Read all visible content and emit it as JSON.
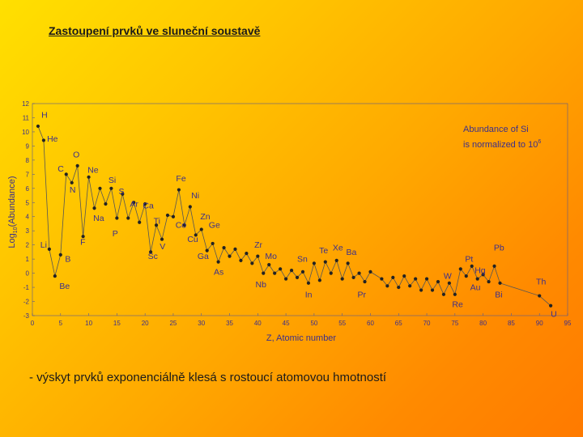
{
  "slide": {
    "title": "Zastoupení prvků ve sluneční soustavě",
    "bullet": "- výskyt prvků exponenciálně klesá s rostoucí atomovou hmotností"
  },
  "colors": {
    "ink": "#3b2f8a",
    "line": "#555555",
    "marker": "#222222"
  },
  "chart_data": {
    "type": "line",
    "title": "",
    "xlabel": "Z, Atomic number",
    "ylabel_prefix": "Log",
    "ylabel_sub": "10",
    "ylabel_suffix": "(Abundance)",
    "xlim": [
      0,
      95
    ],
    "ylim": [
      -3,
      12
    ],
    "x_ticks": [
      0,
      5,
      10,
      15,
      20,
      25,
      30,
      35,
      40,
      45,
      50,
      55,
      60,
      65,
      70,
      75,
      80,
      85,
      90,
      95
    ],
    "y_ticks": [
      -3,
      -2,
      -1,
      0,
      1,
      2,
      3,
      4,
      5,
      6,
      7,
      8,
      9,
      10,
      11,
      12
    ],
    "note_line1": "Abundance of Si",
    "note_line2_prefix": "is normalized to 10",
    "note_exp": "6",
    "points": [
      [
        1,
        10.4
      ],
      [
        2,
        9.4
      ],
      [
        3,
        1.7
      ],
      [
        4,
        -0.2
      ],
      [
        5,
        1.3
      ],
      [
        6,
        7.0
      ],
      [
        7,
        6.4
      ],
      [
        8,
        7.6
      ],
      [
        9,
        2.6
      ],
      [
        10,
        6.8
      ],
      [
        11,
        4.6
      ],
      [
        12,
        6.0
      ],
      [
        13,
        4.9
      ],
      [
        14,
        6.0
      ],
      [
        15,
        3.9
      ],
      [
        16,
        5.6
      ],
      [
        17,
        3.9
      ],
      [
        18,
        5.0
      ],
      [
        19,
        3.6
      ],
      [
        20,
        4.9
      ],
      [
        21,
        1.5
      ],
      [
        22,
        3.4
      ],
      [
        23,
        2.4
      ],
      [
        24,
        4.1
      ],
      [
        25,
        4.0
      ],
      [
        26,
        5.9
      ],
      [
        27,
        3.4
      ],
      [
        28,
        4.7
      ],
      [
        29,
        2.7
      ],
      [
        30,
        3.1
      ],
      [
        31,
        1.6
      ],
      [
        32,
        2.1
      ],
      [
        33,
        0.8
      ],
      [
        34,
        1.8
      ],
      [
        35,
        1.2
      ],
      [
        36,
        1.7
      ],
      [
        37,
        0.9
      ],
      [
        38,
        1.4
      ],
      [
        39,
        0.7
      ],
      [
        40,
        1.2
      ],
      [
        41,
        0.0
      ],
      [
        42,
        0.6
      ],
      [
        43,
        0.0
      ],
      [
        44,
        0.3
      ],
      [
        45,
        -0.4
      ],
      [
        46,
        0.2
      ],
      [
        47,
        -0.3
      ],
      [
        48,
        0.1
      ],
      [
        49,
        -0.7
      ],
      [
        50,
        0.7
      ],
      [
        51,
        -0.5
      ],
      [
        52,
        0.8
      ],
      [
        53,
        0.0
      ],
      [
        54,
        0.9
      ],
      [
        55,
        -0.4
      ],
      [
        56,
        0.7
      ],
      [
        57,
        -0.3
      ],
      [
        58,
        0.0
      ],
      [
        59,
        -0.6
      ],
      [
        60,
        0.1
      ],
      [
        62,
        -0.4
      ],
      [
        63,
        -0.9
      ],
      [
        64,
        -0.3
      ],
      [
        65,
        -1.0
      ],
      [
        66,
        -0.2
      ],
      [
        67,
        -0.9
      ],
      [
        68,
        -0.4
      ],
      [
        69,
        -1.2
      ],
      [
        70,
        -0.4
      ],
      [
        71,
        -1.2
      ],
      [
        72,
        -0.6
      ],
      [
        73,
        -1.5
      ],
      [
        74,
        -0.7
      ],
      [
        75,
        -1.5
      ],
      [
        76,
        0.3
      ],
      [
        77,
        -0.2
      ],
      [
        78,
        0.5
      ],
      [
        79,
        -0.4
      ],
      [
        80,
        -0.1
      ],
      [
        81,
        -0.6
      ],
      [
        82,
        0.5
      ],
      [
        83,
        -0.7
      ],
      [
        90,
        -1.6
      ],
      [
        92,
        -2.3
      ]
    ],
    "labels": [
      {
        "text": "H",
        "x": 1.6,
        "y": 11.0
      },
      {
        "text": "He",
        "x": 2.6,
        "y": 9.3
      },
      {
        "text": "Li",
        "x": 1.4,
        "y": 1.8
      },
      {
        "text": "Be",
        "x": 4.8,
        "y": -1.1
      },
      {
        "text": "B",
        "x": 5.8,
        "y": 0.8
      },
      {
        "text": "C",
        "x": 4.5,
        "y": 7.2
      },
      {
        "text": "N",
        "x": 6.6,
        "y": 5.7
      },
      {
        "text": "O",
        "x": 7.2,
        "y": 8.2
      },
      {
        "text": "F",
        "x": 8.5,
        "y": 2.0
      },
      {
        "text": "Ne",
        "x": 9.8,
        "y": 7.1
      },
      {
        "text": "Na",
        "x": 10.8,
        "y": 3.7
      },
      {
        "text": "Si",
        "x": 13.5,
        "y": 6.4
      },
      {
        "text": "S",
        "x": 15.3,
        "y": 5.6
      },
      {
        "text": "P",
        "x": 14.2,
        "y": 2.6
      },
      {
        "text": "Ar",
        "x": 17.3,
        "y": 4.7
      },
      {
        "text": "Ca",
        "x": 19.6,
        "y": 4.6
      },
      {
        "text": "Ti",
        "x": 21.5,
        "y": 3.5
      },
      {
        "text": "Sc",
        "x": 20.5,
        "y": 1.0
      },
      {
        "text": "V",
        "x": 22.6,
        "y": 1.7
      },
      {
        "text": "Fe",
        "x": 25.5,
        "y": 6.5
      },
      {
        "text": "Ni",
        "x": 28.2,
        "y": 5.3
      },
      {
        "text": "Zn",
        "x": 29.8,
        "y": 3.8
      },
      {
        "text": "Co",
        "x": 25.4,
        "y": 3.2
      },
      {
        "text": "Ge",
        "x": 31.3,
        "y": 3.2
      },
      {
        "text": "Cu",
        "x": 27.5,
        "y": 2.2
      },
      {
        "text": "Ga",
        "x": 29.3,
        "y": 1.0
      },
      {
        "text": "As",
        "x": 32.2,
        "y": -0.1
      },
      {
        "text": "Zr",
        "x": 39.4,
        "y": 1.8
      },
      {
        "text": "Mo",
        "x": 41.3,
        "y": 1.0
      },
      {
        "text": "Nb",
        "x": 39.6,
        "y": -1.0
      },
      {
        "text": "Sn",
        "x": 47.0,
        "y": 0.8
      },
      {
        "text": "Te",
        "x": 50.9,
        "y": 1.4
      },
      {
        "text": "Xe",
        "x": 53.3,
        "y": 1.6
      },
      {
        "text": "Ba",
        "x": 55.7,
        "y": 1.3
      },
      {
        "text": "In",
        "x": 48.4,
        "y": -1.7
      },
      {
        "text": "Pr",
        "x": 57.7,
        "y": -1.7
      },
      {
        "text": "W",
        "x": 73.0,
        "y": -0.4
      },
      {
        "text": "Re",
        "x": 74.5,
        "y": -2.4
      },
      {
        "text": "Pt",
        "x": 76.8,
        "y": 0.8
      },
      {
        "text": "Hg",
        "x": 78.5,
        "y": 0.0
      },
      {
        "text": "Au",
        "x": 77.7,
        "y": -1.2
      },
      {
        "text": "Pb",
        "x": 81.9,
        "y": 1.6
      },
      {
        "text": "Bi",
        "x": 82.1,
        "y": -1.7
      },
      {
        "text": "Th",
        "x": 89.4,
        "y": -0.8
      },
      {
        "text": "U",
        "x": 92.0,
        "y": -3.1
      }
    ]
  }
}
